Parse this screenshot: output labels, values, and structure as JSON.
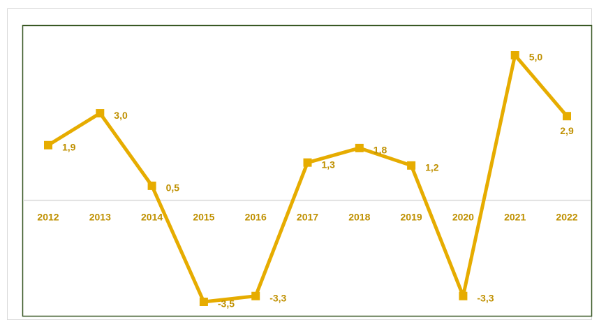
{
  "chart_data": {
    "type": "line",
    "categories": [
      "2012",
      "2013",
      "2014",
      "2015",
      "2016",
      "2017",
      "2018",
      "2019",
      "2020",
      "2021",
      "2022"
    ],
    "series": [
      {
        "color": "#e6ac00",
        "values": [
          1.9,
          3.0,
          0.5,
          -3.5,
          -3.3,
          1.3,
          1.8,
          1.2,
          -3.3,
          5.0,
          2.9
        ],
        "value_labels": [
          "1,9",
          "3,0",
          "0,5",
          "-3,5",
          "-3,3",
          "1,3",
          "1,8",
          "1,2",
          "-3,3",
          "5,0",
          "2,9"
        ]
      }
    ]
  }
}
